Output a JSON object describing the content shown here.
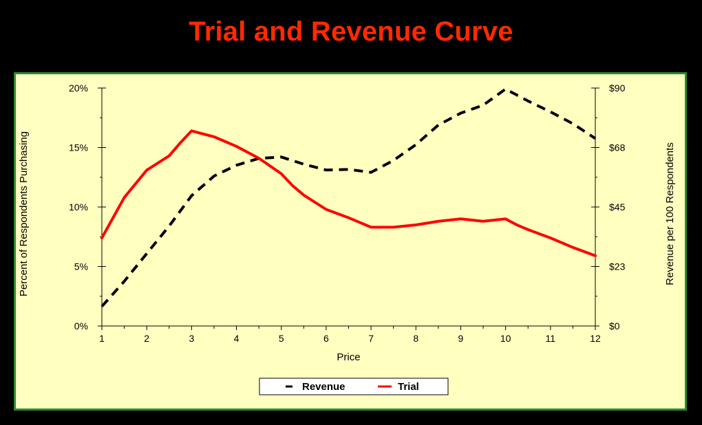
{
  "title": "Trial and Revenue Curve",
  "colors": {
    "background": "#000000",
    "plot_background": "#ffffc0",
    "border": "#2e8b2e",
    "title": "#ff2a00",
    "trial": "#ff0000",
    "revenue": "#000000"
  },
  "chart_data": {
    "type": "line",
    "title": "Trial and Revenue Curve",
    "xlabel": "Price",
    "ylabel_left": "Percent of Respondents Purchasing",
    "ylabel_right": "Revenue per 100 Respondents",
    "xlim": [
      1,
      12
    ],
    "ylim_left": [
      0,
      20
    ],
    "ylim_right": [
      0,
      90
    ],
    "x_ticks": [
      "1",
      "2",
      "3",
      "4",
      "5",
      "6",
      "7",
      "8",
      "9",
      "10",
      "11",
      "12"
    ],
    "y_left_ticks": [
      "0%",
      "5%",
      "10%",
      "15%",
      "20%"
    ],
    "y_right_ticks": [
      "$0",
      "$23",
      "$45",
      "$68",
      "$90"
    ],
    "grid": false,
    "legend_position": "bottom",
    "series": [
      {
        "name": "Revenue",
        "axis": "right",
        "style": "dashed",
        "color": "#000000",
        "x": [
          1,
          1.5,
          2,
          2.5,
          3,
          3.5,
          4,
          4.5,
          5,
          5.5,
          6,
          6.5,
          7,
          7.5,
          8,
          8.5,
          9,
          9.5,
          10,
          10.5,
          11,
          11.5,
          12
        ],
        "values": [
          7.4,
          16.9,
          27.4,
          37.8,
          49.3,
          56.7,
          60.8,
          63.4,
          63.9,
          61.2,
          59.0,
          59.2,
          58.1,
          62.6,
          68.6,
          76.0,
          80.5,
          83.5,
          89.6,
          85.1,
          81.0,
          76.5,
          70.9
        ]
      },
      {
        "name": "Trial",
        "axis": "left",
        "style": "solid",
        "color": "#ff0000",
        "x": [
          1,
          1.5,
          2,
          2.5,
          2.75,
          3,
          3.5,
          4,
          4.5,
          5,
          5.25,
          5.5,
          6,
          6.5,
          7,
          7.5,
          8,
          8.5,
          9,
          9.5,
          10,
          10.25,
          10.5,
          11,
          11.5,
          12
        ],
        "values": [
          7.4,
          10.8,
          13.1,
          14.3,
          15.4,
          16.4,
          15.9,
          15.1,
          14.1,
          12.8,
          11.8,
          11.0,
          9.8,
          9.1,
          8.3,
          8.3,
          8.5,
          8.8,
          9.0,
          8.8,
          9.0,
          8.5,
          8.1,
          7.4,
          6.6,
          5.9
        ]
      }
    ]
  },
  "legend": {
    "revenue_label": "Revenue",
    "trial_label": "Trial"
  }
}
